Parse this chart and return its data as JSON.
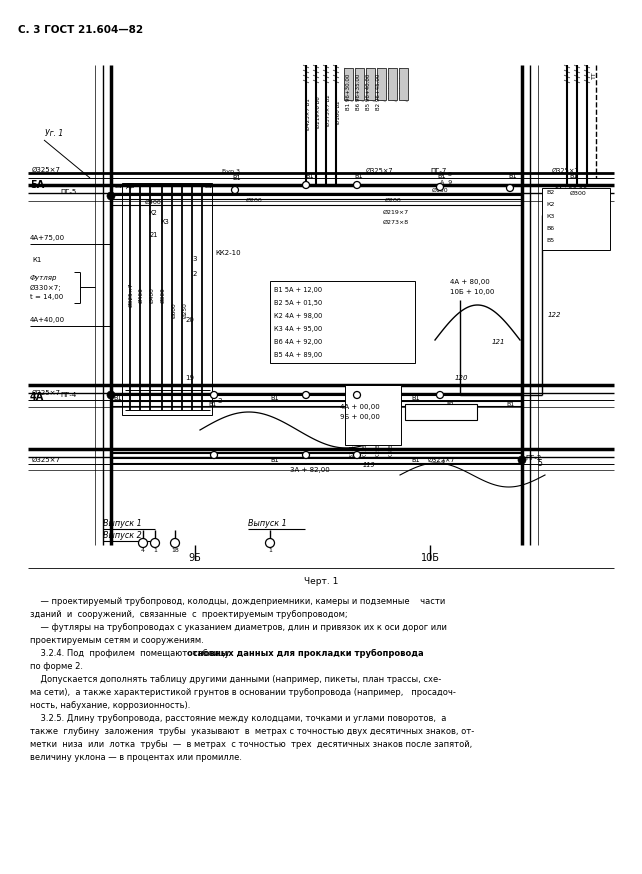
{
  "title": "С. 3 ГОСТ 21.604—82",
  "caption": "Черт. 1",
  "para": [
    "    — проектируемый трубопровод, колодцы, дождеприемники, камеры и подземные    части",
    "зданий  и  сооружений,  связанные  с  проектируемым трубопроводом;",
    "    — футляры на трубопроводах с указанием диаметров, длин и привязок их к оси дорог или",
    "проектируемым сетям и сооружениям.",
    "    3.2.4. Под  профилем  помещают  таблицу    основных данных для прокладки трубопровода",
    "по форме 2.",
    "    Допускается дополнять таблицу другими данными (например, пикеты, план трассы, схе-",
    "ма сети),  а также характеристикой грунтов в основании трубопровода (например,   просадоч-",
    "ность, набухание, коррозионность).",
    "    3.2.5. Длину трубопровода, расстояние между колодцами, точками и углами поворотов,  а",
    "также  глубину  заложения  трубы  указывают  в  метрах с точностью двух десятичных знаков, от-",
    "метки  низа  или  лотка  трубы  —  в метрах  с точностью  трех  десятичных знаков после запятой,",
    "величину уклона — в процентах или промилле."
  ],
  "bold_start": "основных данных для прокладки трубопровода"
}
